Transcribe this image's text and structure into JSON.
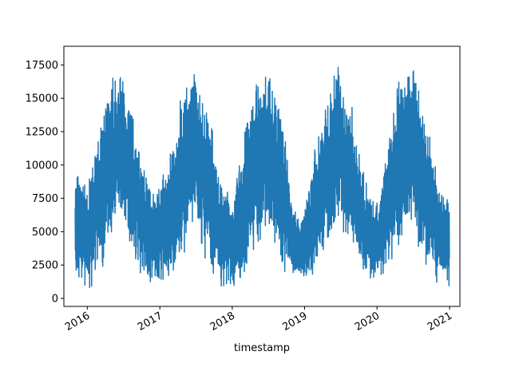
{
  "chart_data": {
    "type": "line",
    "title": "",
    "xlabel": "timestamp",
    "ylabel": "",
    "xlim": [
      "2015-09-05",
      "2021-02-22"
    ],
    "ylim": [
      -600,
      18900
    ],
    "grid": false,
    "legend": "none",
    "x_ticks": [
      "2016",
      "2017",
      "2018",
      "2019",
      "2020",
      "2021"
    ],
    "y_ticks": [
      "0",
      "2500",
      "5000",
      "7500",
      "10000",
      "12500",
      "15000",
      "17500"
    ],
    "series": [
      {
        "color": "#1f77b4",
        "x_range": [
          "2015-11-01",
          "2020-12-31"
        ],
        "sampling": "daily",
        "envelope": [
          {
            "date": "2015-11-01",
            "min": 600,
            "max": 9800
          },
          {
            "date": "2016-01-01",
            "min": 500,
            "max": 8800
          },
          {
            "date": "2016-03-01",
            "min": 1500,
            "max": 12800
          },
          {
            "date": "2016-05-01",
            "min": 3800,
            "max": 17000
          },
          {
            "date": "2016-06-15",
            "min": 6000,
            "max": 17700
          },
          {
            "date": "2016-08-01",
            "min": 3500,
            "max": 16000
          },
          {
            "date": "2016-10-01",
            "min": 1500,
            "max": 11000
          },
          {
            "date": "2016-12-15",
            "min": 400,
            "max": 8300
          },
          {
            "date": "2017-03-01",
            "min": 1200,
            "max": 12000
          },
          {
            "date": "2017-05-01",
            "min": 3000,
            "max": 16500
          },
          {
            "date": "2017-06-20",
            "min": 5000,
            "max": 17700
          },
          {
            "date": "2017-09-01",
            "min": 2500,
            "max": 15000
          },
          {
            "date": "2017-11-01",
            "min": 800,
            "max": 9500
          },
          {
            "date": "2018-01-01",
            "min": 300,
            "max": 7500
          },
          {
            "date": "2018-03-01",
            "min": 1200,
            "max": 12500
          },
          {
            "date": "2018-05-01",
            "min": 3500,
            "max": 17300
          },
          {
            "date": "2018-06-20",
            "min": 5000,
            "max": 18100
          },
          {
            "date": "2018-09-01",
            "min": 2000,
            "max": 16000
          },
          {
            "date": "2018-11-01",
            "min": 1000,
            "max": 7500
          },
          {
            "date": "2019-01-01",
            "min": 1000,
            "max": 6500
          },
          {
            "date": "2019-03-01",
            "min": 1500,
            "max": 12500
          },
          {
            "date": "2019-05-01",
            "min": 2500,
            "max": 16500
          },
          {
            "date": "2019-06-20",
            "min": 5500,
            "max": 17700
          },
          {
            "date": "2019-09-01",
            "min": 3000,
            "max": 14500
          },
          {
            "date": "2019-11-01",
            "min": 1200,
            "max": 9000
          },
          {
            "date": "2020-01-01",
            "min": 1000,
            "max": 7500
          },
          {
            "date": "2020-03-01",
            "min": 1500,
            "max": 13000
          },
          {
            "date": "2020-05-01",
            "min": 3500,
            "max": 17800
          },
          {
            "date": "2020-06-20",
            "min": 5000,
            "max": 17900
          },
          {
            "date": "2020-09-01",
            "min": 2000,
            "max": 14500
          },
          {
            "date": "2020-11-01",
            "min": 800,
            "max": 9800
          },
          {
            "date": "2020-12-31",
            "min": 800,
            "max": 8000
          }
        ]
      }
    ]
  }
}
